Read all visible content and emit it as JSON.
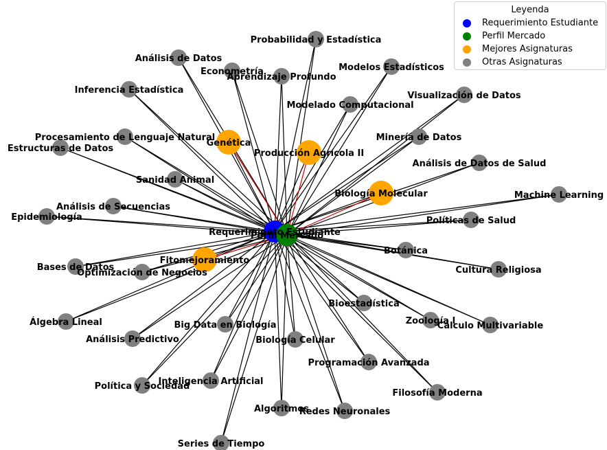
{
  "legend": {
    "title": "Leyenda",
    "items": [
      {
        "label": "Requerimiento Estudiante",
        "color": "#0000ff"
      },
      {
        "label": "Perfil Mercado",
        "color": "#008000"
      },
      {
        "label": "Mejores Asignaturas",
        "color": "#ffa500"
      },
      {
        "label": "Otras Asignaturas",
        "color": "#808080"
      }
    ]
  },
  "hubs": [
    {
      "label": "Requerimiento Estudiante",
      "color": "#0000ff"
    },
    {
      "label": "Perfil Mercado",
      "color": "#008000"
    }
  ],
  "colors": {
    "edge": "#000000",
    "highlight_edge": "#cc0000",
    "best": "#ffa500",
    "other": "#808080"
  },
  "best_subjects": [
    "Genética",
    "Producción Agrícola II",
    "Biología Molecular",
    "Fitomejoramiento"
  ],
  "other_subjects": [
    "Probabilidad y Estadística",
    "Análisis de Datos",
    "Econometría",
    "Aprendizaje Profundo",
    "Modelos Estadísticos",
    "Inferencia Estadística",
    "Visualización de Datos",
    "Modelado Computacional",
    "Procesamiento de Lenguaje Natural",
    "Minería de Datos",
    "Estructuras de Datos",
    "Análisis de Datos de Salud",
    "Sanidad Animal",
    "Machine Learning",
    "Análisis de Secuencias",
    "Epidemiología",
    "Políticas de Salud",
    "Botánica",
    "Bases de Datos",
    "Optimización de Negocios",
    "Cultura Religiosa",
    "Bioestadística",
    "Álgebra Lineal",
    "Zoología I",
    "Big Data en Biología",
    "Cálculo Multivariable",
    "Análisis Predictivo",
    "Biología Celular",
    "Programación Avanzada",
    "Política y Sociedad",
    "Inteligencia Artificial",
    "Filosofía Moderna",
    "Algoritmos",
    "Redes Neuronales",
    "Series de Tiempo"
  ]
}
